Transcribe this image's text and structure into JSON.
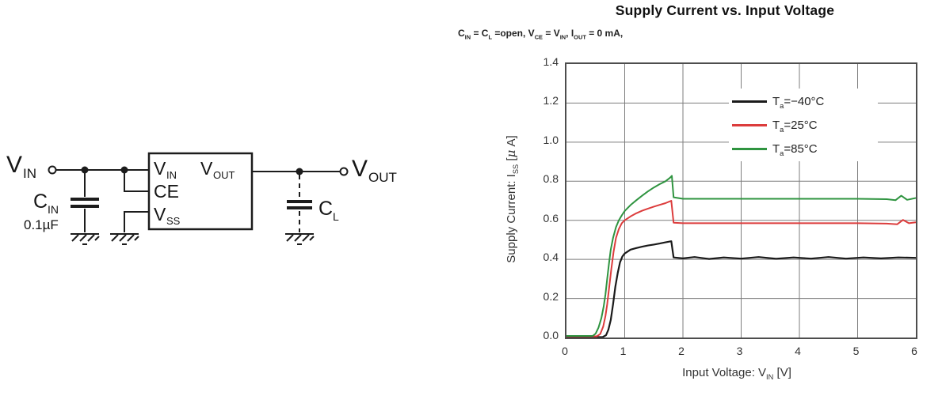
{
  "circuit": {
    "input_label": {
      "main": "V",
      "sub": "IN"
    },
    "cin": {
      "main": "C",
      "sub": "IN",
      "value": "0.1µF"
    },
    "ic": {
      "pin_vin": {
        "main": "V",
        "sub": "IN"
      },
      "pin_vout": {
        "main": "V",
        "sub": "OUT"
      },
      "pin_ce": "CE",
      "pin_vss": {
        "main": "V",
        "sub": "SS"
      }
    },
    "cl": {
      "main": "C",
      "sub": "L"
    },
    "output_label": {
      "main": "V",
      "sub": "OUT"
    }
  },
  "chart_data": {
    "type": "line",
    "title": "Supply Current vs. Input Voltage",
    "conditions": "CIN = CL =open, VCE = VIN, IOUT = 0 mA,",
    "conditions_segments": [
      {
        "t": "C"
      },
      {
        "s": "IN"
      },
      {
        "t": " = C"
      },
      {
        "s": "L"
      },
      {
        "t": " =open, V"
      },
      {
        "s": "CE"
      },
      {
        "t": " = V"
      },
      {
        "s": "IN"
      },
      {
        "t": ", I"
      },
      {
        "s": "OUT"
      },
      {
        "t": " = 0 mA,"
      }
    ],
    "xlabel": "Input Voltage: VIN [V]",
    "xlabel_segments": [
      {
        "t": "Input Voltage: V"
      },
      {
        "s": "IN"
      },
      {
        "t": " [V]"
      }
    ],
    "ylabel": "Supply Current: ISS [μ A]",
    "ylabel_segments": [
      {
        "t": "Supply Current: I"
      },
      {
        "s": "SS"
      },
      {
        "t": " ["
      },
      {
        "i": "μ"
      },
      {
        "t": " A]"
      }
    ],
    "xlim": [
      0,
      6
    ],
    "ylim": [
      0,
      1.4
    ],
    "x_ticks": [
      0,
      1,
      2,
      3,
      4,
      5,
      6
    ],
    "y_ticks": [
      "0.0",
      "0.2",
      "0.4",
      "0.6",
      "0.8",
      "1.0",
      "1.2",
      "1.4"
    ],
    "grid": true,
    "legend_position": "top-right",
    "grid_color": "#7d7d7d",
    "border_color": "#4d4d4d",
    "series": [
      {
        "name": "Ta=−40°C",
        "label_segments": [
          {
            "t": "T"
          },
          {
            "s": "a"
          },
          {
            "t": "=−40°C"
          }
        ],
        "color": "#1a1a1a",
        "width": 2.2,
        "points": [
          [
            0,
            0.002
          ],
          [
            0.62,
            0.002
          ],
          [
            0.68,
            0.012
          ],
          [
            0.72,
            0.04
          ],
          [
            0.76,
            0.09
          ],
          [
            0.8,
            0.17
          ],
          [
            0.84,
            0.26
          ],
          [
            0.88,
            0.33
          ],
          [
            0.92,
            0.385
          ],
          [
            0.96,
            0.415
          ],
          [
            1.0,
            0.43
          ],
          [
            1.1,
            0.45
          ],
          [
            1.2,
            0.458
          ],
          [
            1.3,
            0.465
          ],
          [
            1.4,
            0.471
          ],
          [
            1.5,
            0.476
          ],
          [
            1.6,
            0.481
          ],
          [
            1.7,
            0.487
          ],
          [
            1.8,
            0.493
          ],
          [
            1.84,
            0.41
          ],
          [
            2.0,
            0.405
          ],
          [
            2.2,
            0.412
          ],
          [
            2.45,
            0.402
          ],
          [
            2.7,
            0.41
          ],
          [
            3.0,
            0.404
          ],
          [
            3.3,
            0.412
          ],
          [
            3.6,
            0.403
          ],
          [
            3.9,
            0.41
          ],
          [
            4.2,
            0.404
          ],
          [
            4.5,
            0.412
          ],
          [
            4.8,
            0.404
          ],
          [
            5.1,
            0.41
          ],
          [
            5.4,
            0.405
          ],
          [
            5.7,
            0.41
          ],
          [
            6.0,
            0.408
          ]
        ]
      },
      {
        "name": "Ta=25°C",
        "label_segments": [
          {
            "t": "T"
          },
          {
            "s": "a"
          },
          {
            "t": "=25°C"
          }
        ],
        "color": "#dc3c3c",
        "width": 2,
        "points": [
          [
            0,
            0.006
          ],
          [
            0.52,
            0.006
          ],
          [
            0.58,
            0.018
          ],
          [
            0.63,
            0.055
          ],
          [
            0.67,
            0.11
          ],
          [
            0.7,
            0.17
          ],
          [
            0.73,
            0.25
          ],
          [
            0.77,
            0.35
          ],
          [
            0.81,
            0.44
          ],
          [
            0.85,
            0.51
          ],
          [
            0.9,
            0.555
          ],
          [
            0.95,
            0.585
          ],
          [
            1.0,
            0.6
          ],
          [
            1.1,
            0.62
          ],
          [
            1.2,
            0.636
          ],
          [
            1.3,
            0.649
          ],
          [
            1.4,
            0.66
          ],
          [
            1.5,
            0.67
          ],
          [
            1.6,
            0.679
          ],
          [
            1.7,
            0.688
          ],
          [
            1.8,
            0.7
          ],
          [
            1.84,
            0.588
          ],
          [
            2.0,
            0.585
          ],
          [
            2.5,
            0.585
          ],
          [
            3.0,
            0.585
          ],
          [
            3.5,
            0.585
          ],
          [
            4.0,
            0.585
          ],
          [
            4.5,
            0.585
          ],
          [
            5.0,
            0.585
          ],
          [
            5.5,
            0.583
          ],
          [
            5.68,
            0.58
          ],
          [
            5.78,
            0.602
          ],
          [
            5.88,
            0.585
          ],
          [
            6.0,
            0.59
          ]
        ]
      },
      {
        "name": "Ta=85°C",
        "label_segments": [
          {
            "t": "T"
          },
          {
            "s": "a"
          },
          {
            "t": "=85°C"
          }
        ],
        "color": "#2f9440",
        "width": 2,
        "points": [
          [
            0,
            0.008
          ],
          [
            0.45,
            0.008
          ],
          [
            0.5,
            0.02
          ],
          [
            0.55,
            0.05
          ],
          [
            0.6,
            0.1
          ],
          [
            0.64,
            0.16
          ],
          [
            0.67,
            0.22
          ],
          [
            0.7,
            0.3
          ],
          [
            0.73,
            0.38
          ],
          [
            0.76,
            0.45
          ],
          [
            0.8,
            0.51
          ],
          [
            0.85,
            0.565
          ],
          [
            0.9,
            0.6
          ],
          [
            0.95,
            0.625
          ],
          [
            1.0,
            0.648
          ],
          [
            1.1,
            0.678
          ],
          [
            1.2,
            0.703
          ],
          [
            1.3,
            0.726
          ],
          [
            1.4,
            0.748
          ],
          [
            1.5,
            0.768
          ],
          [
            1.6,
            0.785
          ],
          [
            1.7,
            0.8
          ],
          [
            1.78,
            0.818
          ],
          [
            1.81,
            0.828
          ],
          [
            1.84,
            0.718
          ],
          [
            2.0,
            0.71
          ],
          [
            2.5,
            0.71
          ],
          [
            3.0,
            0.71
          ],
          [
            3.5,
            0.71
          ],
          [
            4.0,
            0.71
          ],
          [
            4.5,
            0.71
          ],
          [
            5.0,
            0.71
          ],
          [
            5.5,
            0.708
          ],
          [
            5.65,
            0.703
          ],
          [
            5.75,
            0.726
          ],
          [
            5.85,
            0.705
          ],
          [
            6.0,
            0.714
          ]
        ]
      }
    ]
  }
}
